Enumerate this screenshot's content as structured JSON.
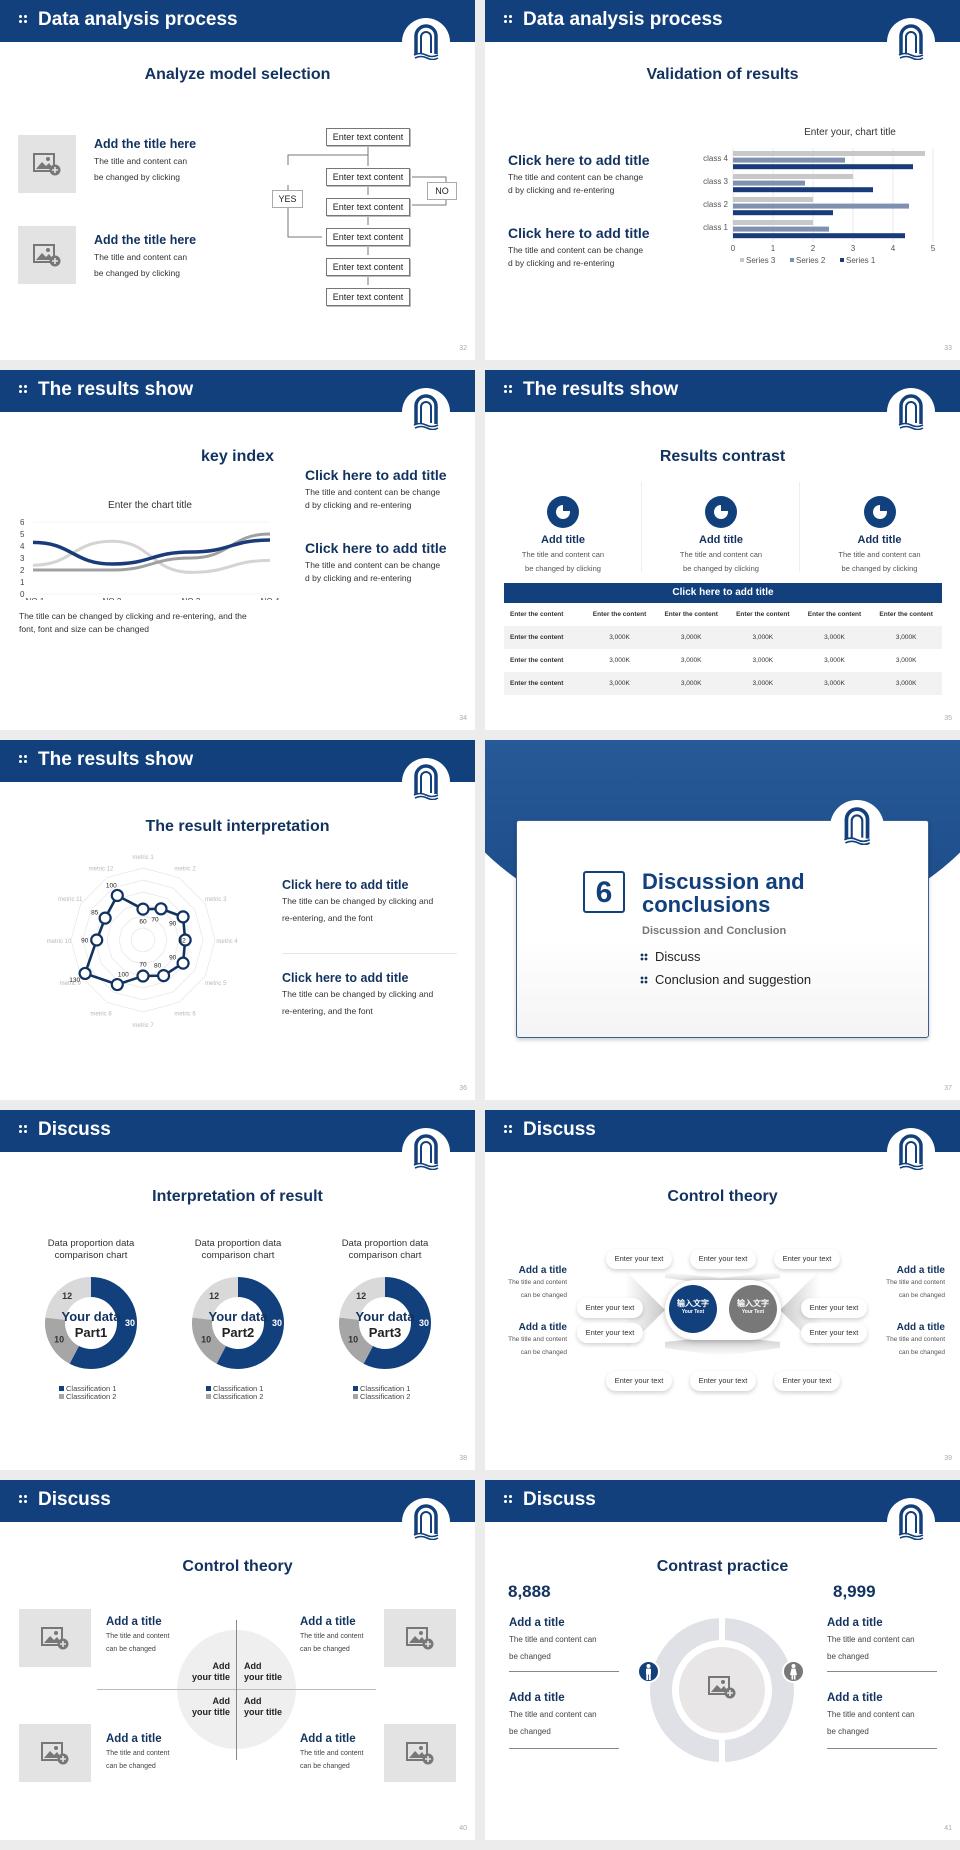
{
  "slides": [
    {
      "header": "Data analysis process",
      "title": "Analyze model selection",
      "page": "32",
      "items": [
        {
          "title": "Add the title here",
          "text1": "The title and content can",
          "text2": "be changed by clicking"
        },
        {
          "title": "Add the title here",
          "text1": "The title and content can",
          "text2": "be changed by clicking"
        }
      ],
      "flow": {
        "box": "Enter text content",
        "yes": "YES",
        "no": "NO"
      }
    },
    {
      "header": "Data analysis process",
      "title": "Validation of results",
      "page": "33",
      "items": [
        {
          "title": "Click here to add title",
          "text1": "The title and content can be change",
          "text2": "d by clicking and re-entering"
        },
        {
          "title": "Click here to add title",
          "text1": "The title and content can be change",
          "text2": "d by clicking and re-entering"
        }
      ]
    },
    {
      "header": "The results show",
      "title": "key index",
      "page": "34",
      "items": [
        {
          "title": "Click here to add title",
          "text1": "The title and content can be change",
          "text2": "d by clicking and re-entering"
        },
        {
          "title": "Click here to add title",
          "text1": "The title and content can be change",
          "text2": "d by clicking and re-entering"
        }
      ],
      "note1": "The title can be changed by clicking and re-entering, and the",
      "note2": "font, font and size can be changed"
    },
    {
      "header": "The results show",
      "title": "Results contrast",
      "page": "35",
      "cards": [
        {
          "title": "Add title",
          "text1": "The title and content can",
          "text2": "be changed by clicking"
        },
        {
          "title": "Add title",
          "text1": "The title and content can",
          "text2": "be changed by clicking"
        },
        {
          "title": "Add title",
          "text1": "The title and content can",
          "text2": "be changed by clicking"
        }
      ],
      "table": {
        "title": "Click here to add title",
        "header": [
          "Enter the content",
          "Enter the content",
          "Enter the content",
          "Enter the content",
          "Enter the content",
          "Enter the content"
        ],
        "rows": [
          [
            "Enter the content",
            "3,000K",
            "3,000K",
            "3,000K",
            "3,000K",
            "3,000K"
          ],
          [
            "Enter the content",
            "3,000K",
            "3,000K",
            "3,000K",
            "3,000K",
            "3,000K"
          ],
          [
            "Enter the content",
            "3,000K",
            "3,000K",
            "3,000K",
            "3,000K",
            "3,000K"
          ]
        ]
      }
    },
    {
      "header": "The results show",
      "title": "The result interpretation",
      "page": "36",
      "items": [
        {
          "title": "Click here to add  title",
          "text1": "The title can be changed by clicking and",
          "text2": "re-entering, and the font"
        },
        {
          "title": "Click here to add  title",
          "text1": "The title can be changed by clicking and",
          "text2": "re-entering, and the font"
        }
      ]
    },
    {
      "page": "37",
      "number": "6",
      "title1": "Discussion and",
      "title2": "conclusions",
      "subtitle": "Discussion and Conclusion",
      "bullets": [
        "Discuss",
        "Conclusion and suggestion"
      ]
    },
    {
      "header": "Discuss",
      "title": "Interpretation of result",
      "page": "38",
      "donuts": [
        {
          "caption1": "Data proportion data",
          "caption2": "comparison chart",
          "center1": "Your data",
          "center2": "Part1"
        },
        {
          "caption1": "Data proportion data",
          "caption2": "comparison chart",
          "center1": "Your data",
          "center2": "Part2"
        },
        {
          "caption1": "Data proportion data",
          "caption2": "comparison chart",
          "center1": "Your data",
          "center2": "Part3"
        }
      ],
      "legend": [
        "Classification 1",
        "Classification 2"
      ]
    },
    {
      "header": "Discuss",
      "title": "Control theory",
      "page": "39",
      "side_items": [
        {
          "title": "Add a title",
          "text1": "The title and content",
          "text2": "can be changed"
        },
        {
          "title": "Add a title",
          "text1": "The title and content",
          "text2": "can be changed"
        },
        {
          "title": "Add a title",
          "text1": "The title and content",
          "text2": "can be changed"
        },
        {
          "title": "Add a title",
          "text1": "The title and content",
          "text2": "can be changed"
        }
      ],
      "pill": "Enter your text",
      "center_cn": "输入文字",
      "center_en": "Your Text"
    },
    {
      "header": "Discuss",
      "title": "Control theory",
      "page": "40",
      "items": [
        {
          "title": "Add a title",
          "text1": "The title and content",
          "text2": "can be changed"
        },
        {
          "title": "Add a title",
          "text1": "The title and content",
          "text2": "can be changed"
        },
        {
          "title": "Add a title",
          "text1": "The title and content",
          "text2": "can be changed"
        },
        {
          "title": "Add a title",
          "text1": "The title and content",
          "text2": "can be changed"
        }
      ],
      "quad": [
        "Add",
        "your title"
      ]
    },
    {
      "header": "Discuss",
      "title": "Contrast practice",
      "page": "41",
      "left_value": "8,888",
      "right_value": "8,999",
      "items": [
        {
          "title": "Add a title",
          "text1": "The title and content can",
          "text2": "be changed"
        },
        {
          "title": "Add a title",
          "text1": "The title and content can",
          "text2": "be changed"
        },
        {
          "title": "Add a title",
          "text1": "The title and content can",
          "text2": "be changed"
        },
        {
          "title": "Add a title",
          "text1": "The title and content can",
          "text2": "be changed"
        }
      ]
    }
  ],
  "chart_data": [
    {
      "type": "bar",
      "orientation": "horizontal",
      "title": "Enter your, chart title",
      "categories": [
        "class 1",
        "class 2",
        "class 3",
        "class 4"
      ],
      "series": [
        {
          "name": "Series 1",
          "color": "#1a3b7a",
          "values": [
            4.3,
            2.5,
            3.5,
            4.5
          ]
        },
        {
          "name": "Series 2",
          "color": "#7f91b0",
          "values": [
            2.4,
            4.4,
            1.8,
            2.8
          ]
        },
        {
          "name": "Series 3",
          "color": "#c8c8c8",
          "values": [
            2.0,
            2.0,
            3.0,
            4.8
          ]
        }
      ],
      "xlim": [
        0,
        5
      ],
      "xticks": [
        "0",
        "1",
        "2",
        "3",
        "4",
        "5"
      ],
      "grid": true,
      "legend_position": "bottom"
    },
    {
      "type": "line",
      "title": "Enter the chart title",
      "categories": [
        "NO.1",
        "NO.2",
        "NO.3",
        "NO.4"
      ],
      "series": [
        {
          "name": "Series 1",
          "color": "#1a3b7a",
          "values": [
            4.3,
            2.5,
            3.5,
            4.5
          ]
        },
        {
          "name": "Series 2",
          "color": "#d4d4d4",
          "values": [
            2.4,
            4.4,
            1.8,
            2.8
          ]
        },
        {
          "name": "Series 3",
          "color": "#a0a0a0",
          "values": [
            2.0,
            2.0,
            3.0,
            5.0
          ]
        }
      ],
      "ylim": [
        0,
        6
      ],
      "yticks": [
        "0",
        "1",
        "2",
        "3",
        "4",
        "5",
        "6"
      ],
      "grid": true
    },
    {
      "type": "radar",
      "categories": [
        "metric 1",
        "metric 2",
        "metric 3",
        "metric 4",
        "metric 5",
        "metric 6",
        "metric 7",
        "metric 8",
        "metric 9",
        "metric 10",
        "metric 11",
        "metric 12"
      ],
      "values": [
        60,
        70,
        90,
        82,
        90,
        80,
        70,
        100,
        130,
        90,
        85,
        100
      ]
    },
    {
      "type": "pie",
      "donut": true,
      "title": "Data proportion data comparison chart",
      "slices": [
        {
          "label": "Classification 1",
          "value": 30,
          "color": "#12407c"
        },
        {
          "label": "Classification 2",
          "value": 10,
          "color": "#a6a6a6"
        },
        {
          "label": "",
          "value": 12,
          "color": "#d9d9d9"
        }
      ],
      "legend": [
        "Classification 1",
        "Classification 2"
      ],
      "count": 3
    }
  ]
}
